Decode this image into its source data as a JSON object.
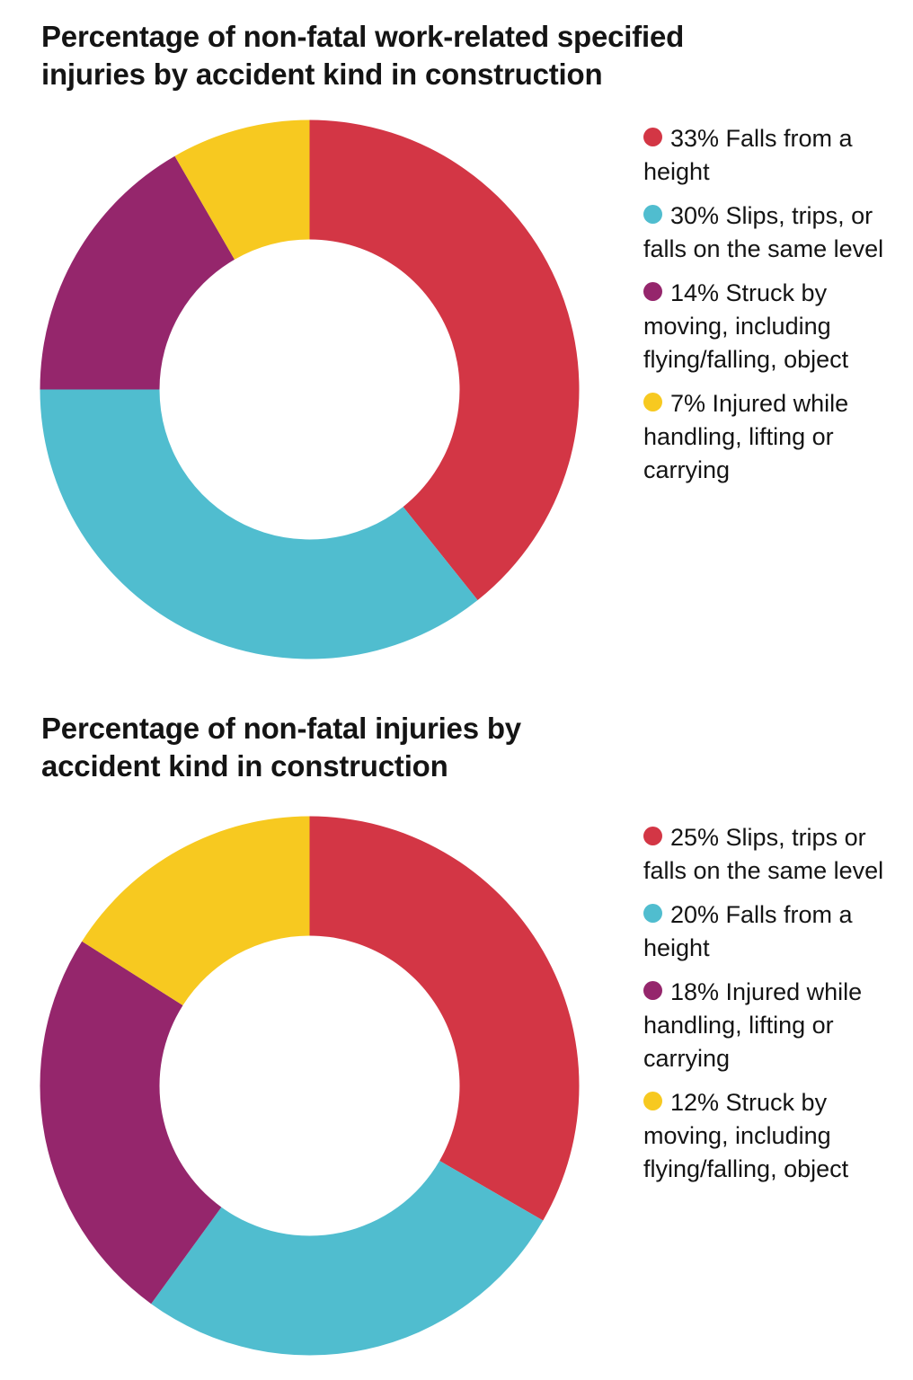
{
  "charts": [
    {
      "title_line1": "Percentage of non-fatal work-related specified",
      "title_line2": "injuries by accident kind in construction",
      "legend": [
        {
          "label": "33% Falls from a height",
          "color": "#d33645"
        },
        {
          "label": "30% Slips, trips, or falls on the same level",
          "color": "#50bdcf"
        },
        {
          "label": "14% Struck by moving, including flying/falling, object",
          "color": "#95266c"
        },
        {
          "label": "7% Injured while handling, lifting or carrying",
          "color": "#f7c920"
        }
      ]
    },
    {
      "title_line1": "Percentage of non-fatal injuries by",
      "title_line2": "accident kind in construction",
      "legend": [
        {
          "label": "25% Slips, trips or falls on the same level",
          "color": "#d33645"
        },
        {
          "label": "20% Falls from a height",
          "color": "#50bdcf"
        },
        {
          "label": "18% Injured while handling, lifting or carrying",
          "color": "#95266c"
        },
        {
          "label": "12% Struck by moving, including flying/falling, object",
          "color": "#f7c920"
        }
      ]
    }
  ],
  "chart_data": [
    {
      "type": "pie",
      "subtype": "donut",
      "title": "Percentage of non-fatal work-related specified injuries by accident kind in construction",
      "categories": [
        "Falls from a height",
        "Slips, trips, or falls on the same level",
        "Struck by moving, including flying/falling, object",
        "Injured while handling, lifting or carrying"
      ],
      "values": [
        33,
        30,
        14,
        7
      ],
      "unit": "%",
      "colors": [
        "#d33645",
        "#50bdcf",
        "#95266c",
        "#f7c920"
      ],
      "start_angle": "12 o'clock, clockwise",
      "legend_position": "right"
    },
    {
      "type": "pie",
      "subtype": "donut",
      "title": "Percentage of non-fatal injuries by accident kind in construction",
      "categories": [
        "Slips, trips or falls on the same level",
        "Falls from a height",
        "Injured while handling, lifting or carrying",
        "Struck by moving, including flying/falling, object"
      ],
      "values": [
        25,
        20,
        18,
        12
      ],
      "unit": "%",
      "colors": [
        "#d33645",
        "#50bdcf",
        "#95266c",
        "#f7c920"
      ],
      "start_angle": "12 o'clock, clockwise",
      "legend_position": "right"
    }
  ]
}
